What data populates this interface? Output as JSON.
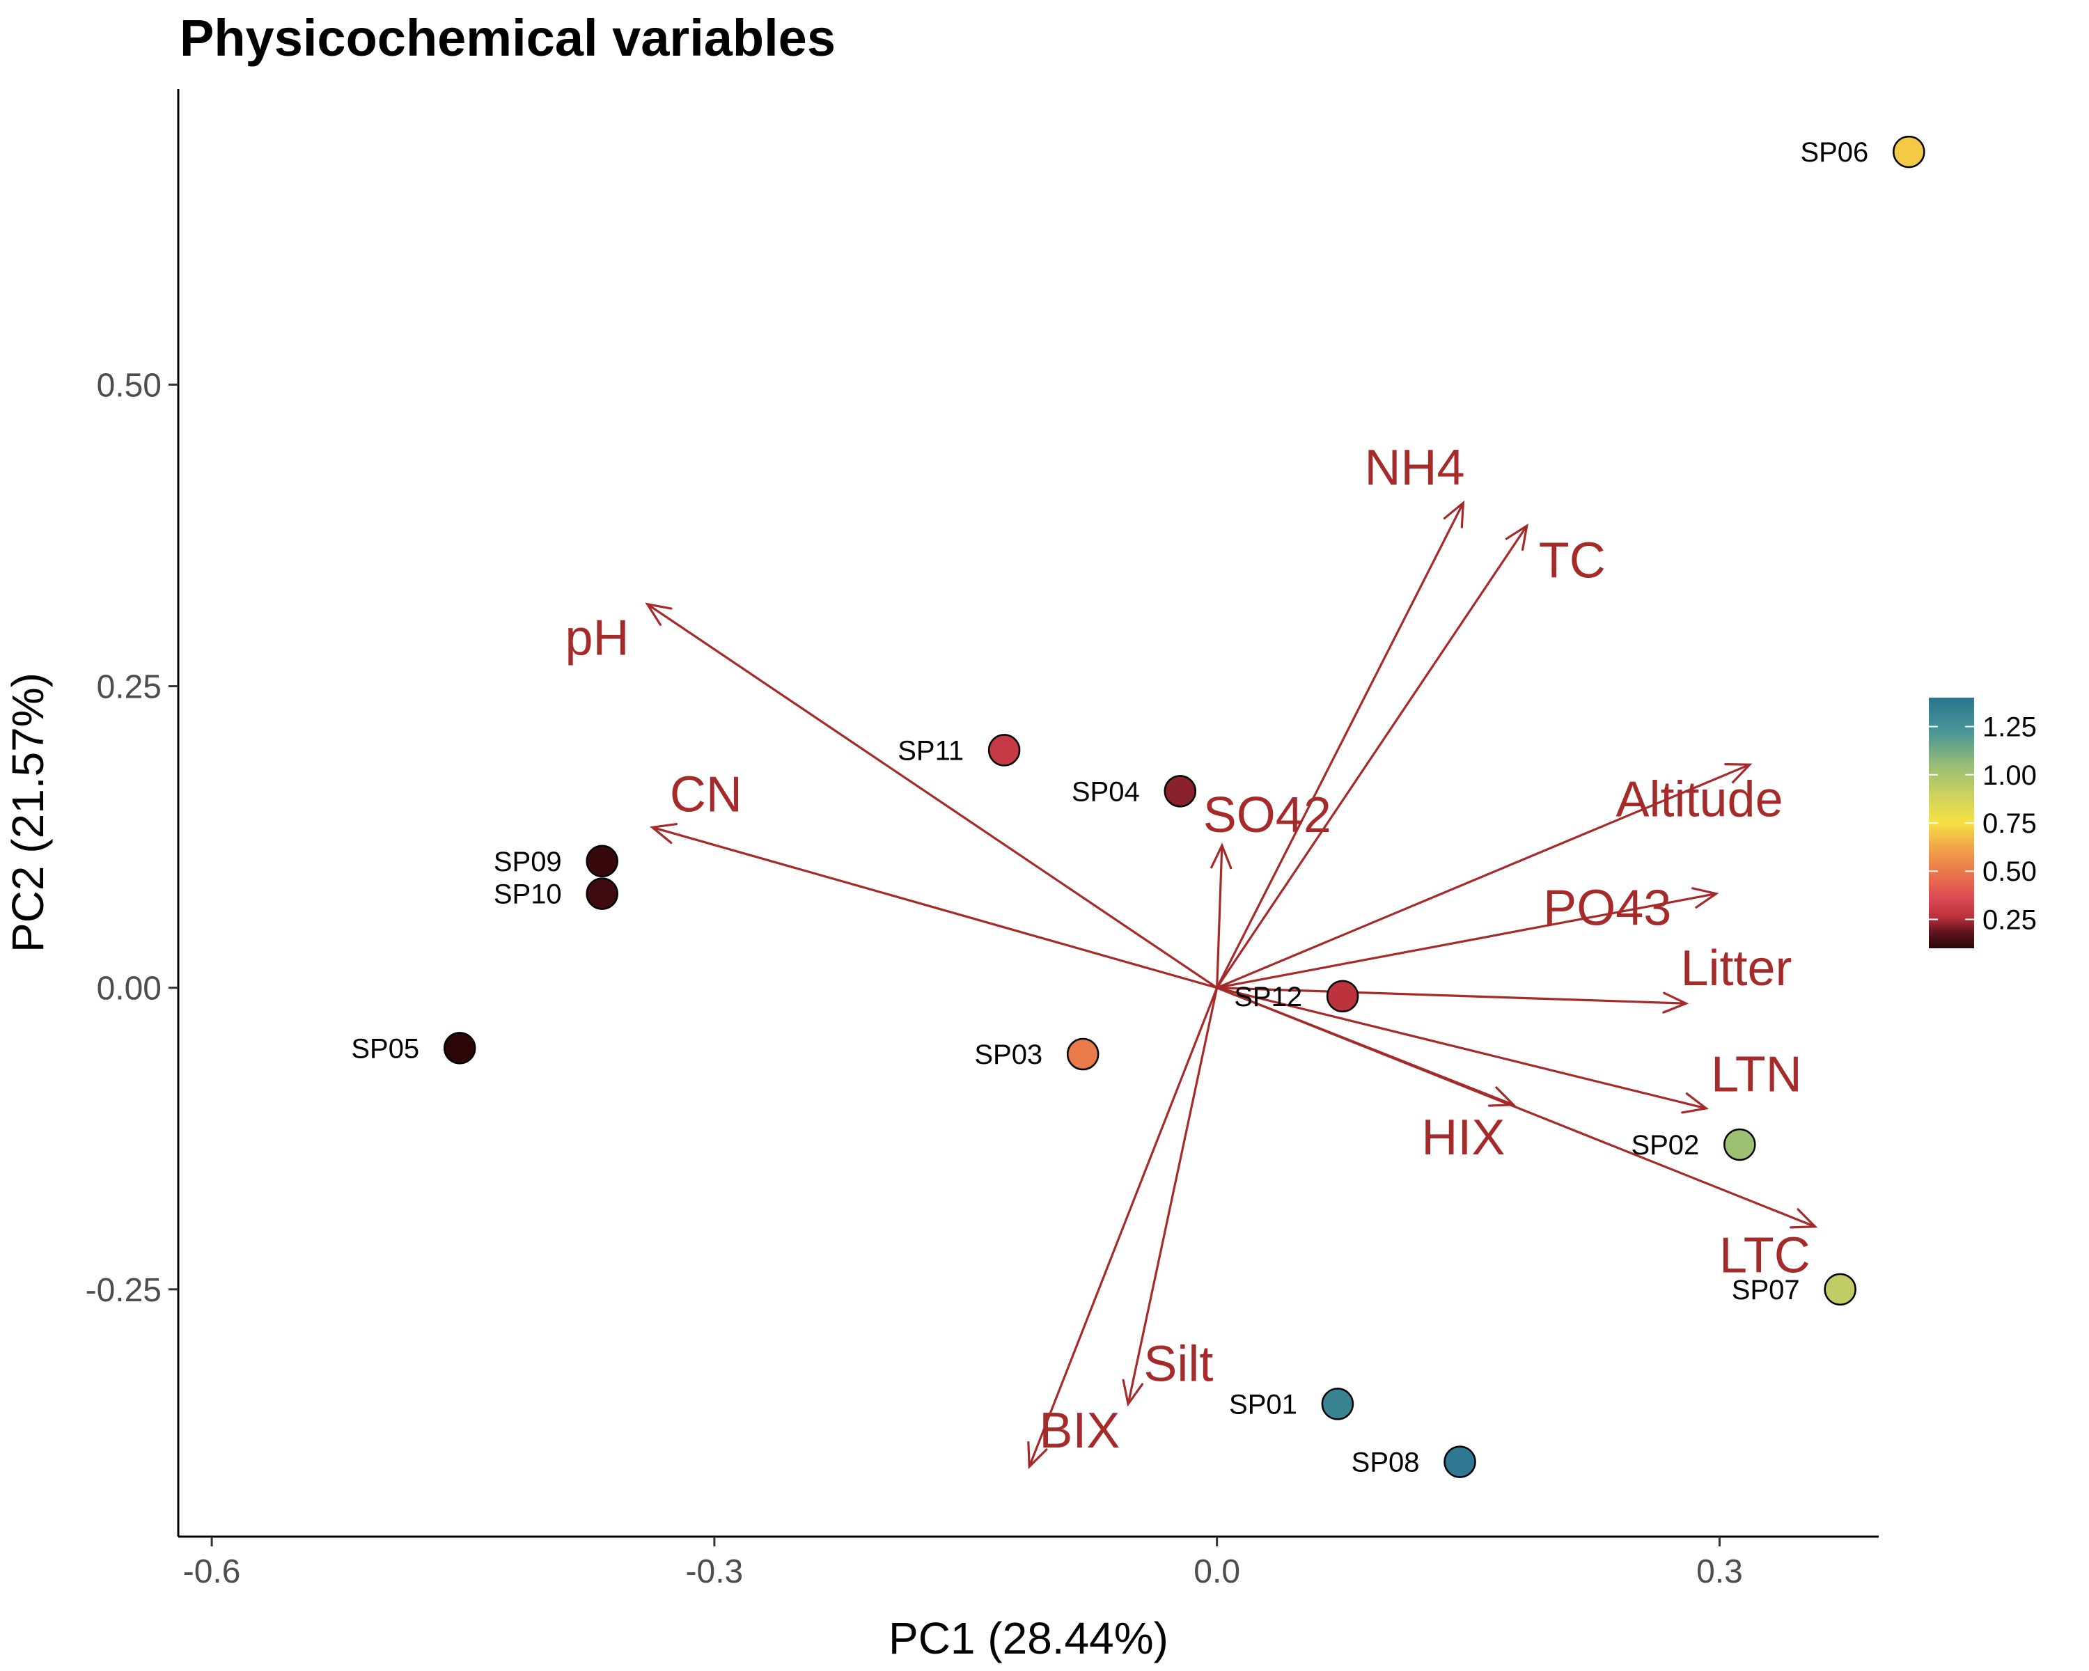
{
  "chart_data": {
    "type": "scatter",
    "title": "Physicochemical variables",
    "xlabel": "PC1 (28.44%)",
    "ylabel": "PC2 (21.57%)",
    "xlim": [
      -0.62,
      0.395
    ],
    "ylim": [
      -0.455,
      0.745
    ],
    "x_ticks": [
      -0.6,
      -0.3,
      0.0,
      0.3
    ],
    "x_tick_labels": [
      "-0.6",
      "-0.3",
      "0.0",
      "0.3"
    ],
    "y_ticks": [
      -0.25,
      0.0,
      0.25,
      0.5
    ],
    "y_tick_labels": [
      "-0.25",
      "0.00",
      "0.25",
      "0.50"
    ],
    "grid": false,
    "vector_color": "#a52a2a",
    "sites": [
      {
        "label": "SP01",
        "x": 0.072,
        "y": -0.345,
        "value": 1.32
      },
      {
        "label": "SP02",
        "x": 0.312,
        "y": -0.13,
        "value": 1.03
      },
      {
        "label": "SP03",
        "x": -0.08,
        "y": -0.055,
        "value": 0.5
      },
      {
        "label": "SP04",
        "x": -0.022,
        "y": 0.163,
        "value": 0.22
      },
      {
        "label": "SP05",
        "x": -0.452,
        "y": -0.05,
        "value": 0.1
      },
      {
        "label": "SP06",
        "x": 0.413,
        "y": 0.693,
        "value": 0.7
      },
      {
        "label": "SP07",
        "x": 0.372,
        "y": -0.25,
        "value": 0.93
      },
      {
        "label": "SP08",
        "x": 0.145,
        "y": -0.393,
        "value": 1.38
      },
      {
        "label": "SP09",
        "x": -0.367,
        "y": 0.105,
        "value": 0.12
      },
      {
        "label": "SP10",
        "x": -0.367,
        "y": 0.078,
        "value": 0.13
      },
      {
        "label": "SP11",
        "x": -0.127,
        "y": 0.197,
        "value": 0.3
      },
      {
        "label": "SP12",
        "x": 0.075,
        "y": -0.007,
        "value": 0.27
      }
    ],
    "vectors": [
      {
        "label": "NH4",
        "x": 0.147,
        "y": 0.402,
        "lx": 0.118,
        "ly": 0.428
      },
      {
        "label": "TC",
        "x": 0.185,
        "y": 0.383,
        "lx": 0.212,
        "ly": 0.351
      },
      {
        "label": "pH",
        "x": -0.34,
        "y": 0.318,
        "lx": -0.37,
        "ly": 0.287
      },
      {
        "label": "CN",
        "x": -0.337,
        "y": 0.133,
        "lx": -0.305,
        "ly": 0.157
      },
      {
        "label": "SO42",
        "x": 0.003,
        "y": 0.118,
        "lx": 0.03,
        "ly": 0.14
      },
      {
        "label": "Altitude",
        "x": 0.318,
        "y": 0.185,
        "lx": 0.288,
        "ly": 0.153
      },
      {
        "label": "PO43",
        "x": 0.298,
        "y": 0.078,
        "lx": 0.233,
        "ly": 0.063
      },
      {
        "label": "Litter",
        "x": 0.28,
        "y": -0.013,
        "lx": 0.31,
        "ly": 0.013
      },
      {
        "label": "LTN",
        "x": 0.292,
        "y": -0.1,
        "lx": 0.322,
        "ly": -0.075
      },
      {
        "label": "HIX",
        "x": 0.177,
        "y": -0.097,
        "lx": 0.147,
        "ly": -0.127
      },
      {
        "label": "LTC",
        "x": 0.357,
        "y": -0.198,
        "lx": 0.327,
        "ly": -0.225
      },
      {
        "label": "Silt",
        "x": -0.053,
        "y": -0.345,
        "lx": -0.023,
        "ly": -0.315
      },
      {
        "label": "BIX",
        "x": -0.112,
        "y": -0.397,
        "lx": -0.082,
        "ly": -0.37
      }
    ],
    "colorbar": {
      "title": "",
      "range": [
        0.1,
        1.4
      ],
      "ticks": [
        0.25,
        0.5,
        0.75,
        1.0,
        1.25
      ],
      "tick_labels": [
        "0.25",
        "0.50",
        "0.75",
        "1.00",
        "1.25"
      ],
      "placement": "right",
      "stops": [
        {
          "v": 0.1,
          "c": "#2a0606"
        },
        {
          "v": 0.18,
          "c": "#5c1420"
        },
        {
          "v": 0.26,
          "c": "#b8303b"
        },
        {
          "v": 0.36,
          "c": "#dc4a55"
        },
        {
          "v": 0.5,
          "c": "#ea7a4a"
        },
        {
          "v": 0.63,
          "c": "#f2a84a"
        },
        {
          "v": 0.75,
          "c": "#f5e142"
        },
        {
          "v": 0.9,
          "c": "#ccd160"
        },
        {
          "v": 1.05,
          "c": "#96bd76"
        },
        {
          "v": 1.22,
          "c": "#4a9697"
        },
        {
          "v": 1.4,
          "c": "#2b7590"
        }
      ]
    }
  }
}
